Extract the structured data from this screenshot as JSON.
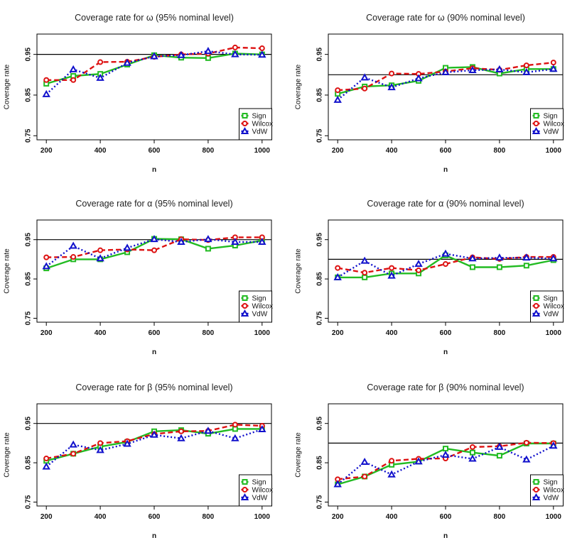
{
  "figure": {
    "width": 819,
    "height": 775
  },
  "colors": {
    "Sign": "#22bb22",
    "Wilcox": "#dd1111",
    "VdW": "#1111cc",
    "reference": "#000000",
    "frame": "#000000"
  },
  "series_styles": {
    "Sign": {
      "dash": "",
      "marker": "square"
    },
    "Wilcox": {
      "dash": "7,4",
      "marker": "circle"
    },
    "VdW": {
      "dash": "2,3",
      "marker": "triangle"
    }
  },
  "chart_data": [
    {
      "type": "line",
      "title": "Coverage rate for ω (95% nominal level)",
      "xlabel": "n",
      "ylabel": "Coverage rate",
      "x": [
        200,
        300,
        400,
        500,
        600,
        700,
        800,
        900,
        1000
      ],
      "xticks": [
        200,
        400,
        600,
        800,
        1000
      ],
      "yticks": [
        0.75,
        0.85,
        0.95
      ],
      "ylim": [
        0.74,
        1.0
      ],
      "reference_line": 0.95,
      "legend": [
        "Sign",
        "Wilcox",
        "VdW"
      ],
      "legend_position": "bottom-right",
      "series": [
        {
          "name": "Sign",
          "values": [
            0.878,
            0.897,
            0.902,
            0.925,
            0.948,
            0.942,
            0.941,
            0.952,
            0.95
          ]
        },
        {
          "name": "Wilcox",
          "values": [
            0.887,
            0.887,
            0.931,
            0.932,
            0.944,
            0.95,
            0.952,
            0.967,
            0.965
          ]
        },
        {
          "name": "VdW",
          "values": [
            0.852,
            0.913,
            0.892,
            0.929,
            0.945,
            0.948,
            0.958,
            0.95,
            0.949
          ]
        }
      ]
    },
    {
      "type": "line",
      "title": "Coverage rate for ω (90% nominal level)",
      "xlabel": "n",
      "ylabel": "Coverage rate",
      "x": [
        200,
        300,
        400,
        500,
        600,
        700,
        800,
        900,
        1000
      ],
      "xticks": [
        200,
        400,
        600,
        800,
        1000
      ],
      "yticks": [
        0.75,
        0.85,
        0.95
      ],
      "ylim": [
        0.74,
        1.0
      ],
      "reference_line": 0.9,
      "legend": [
        "Sign",
        "Wilcox",
        "VdW"
      ],
      "legend_position": "bottom-right",
      "series": [
        {
          "name": "Sign",
          "values": [
            0.853,
            0.871,
            0.874,
            0.885,
            0.917,
            0.919,
            0.903,
            0.914,
            0.914
          ]
        },
        {
          "name": "Wilcox",
          "values": [
            0.862,
            0.866,
            0.903,
            0.902,
            0.908,
            0.916,
            0.912,
            0.923,
            0.93
          ]
        },
        {
          "name": "VdW",
          "values": [
            0.838,
            0.893,
            0.869,
            0.891,
            0.906,
            0.911,
            0.913,
            0.906,
            0.914
          ]
        }
      ]
    },
    {
      "type": "line",
      "title": "Coverage rate for α (95% nominal level)",
      "xlabel": "n",
      "ylabel": "Coverage rate",
      "x": [
        200,
        300,
        400,
        500,
        600,
        700,
        800,
        900,
        1000
      ],
      "xticks": [
        200,
        400,
        600,
        800,
        1000
      ],
      "yticks": [
        0.75,
        0.85,
        0.95
      ],
      "ylim": [
        0.74,
        1.0
      ],
      "reference_line": 0.95,
      "legend": [
        "Sign",
        "Wilcox",
        "VdW"
      ],
      "legend_position": "bottom-right",
      "series": [
        {
          "name": "Sign",
          "values": [
            0.877,
            0.9,
            0.9,
            0.918,
            0.952,
            0.951,
            0.927,
            0.935,
            0.948
          ]
        },
        {
          "name": "Wilcox",
          "values": [
            0.905,
            0.906,
            0.923,
            0.925,
            0.923,
            0.951,
            0.949,
            0.956,
            0.956
          ]
        },
        {
          "name": "VdW",
          "values": [
            0.882,
            0.934,
            0.902,
            0.929,
            0.951,
            0.944,
            0.951,
            0.944,
            0.944
          ]
        }
      ]
    },
    {
      "type": "line",
      "title": "Coverage rate for α (90% nominal level)",
      "xlabel": "n",
      "ylabel": "Coverage rate",
      "x": [
        200,
        300,
        400,
        500,
        600,
        700,
        800,
        900,
        1000
      ],
      "xticks": [
        200,
        400,
        600,
        800,
        1000
      ],
      "yticks": [
        0.75,
        0.85,
        0.95
      ],
      "ylim": [
        0.74,
        1.0
      ],
      "reference_line": 0.9,
      "legend": [
        "Sign",
        "Wilcox",
        "VdW"
      ],
      "legend_position": "bottom-right",
      "series": [
        {
          "name": "Sign",
          "values": [
            0.854,
            0.854,
            0.864,
            0.864,
            0.91,
            0.88,
            0.88,
            0.884,
            0.898
          ]
        },
        {
          "name": "Wilcox",
          "values": [
            0.878,
            0.866,
            0.878,
            0.872,
            0.888,
            0.905,
            0.901,
            0.906,
            0.906
          ]
        },
        {
          "name": "VdW",
          "values": [
            0.854,
            0.896,
            0.858,
            0.888,
            0.914,
            0.902,
            0.904,
            0.904,
            0.902
          ]
        }
      ]
    },
    {
      "type": "line",
      "title": "Coverage rate for β (95% nominal level)",
      "xlabel": "n",
      "ylabel": "Coverage rate",
      "x": [
        200,
        300,
        400,
        500,
        600,
        700,
        800,
        900,
        1000
      ],
      "xticks": [
        200,
        400,
        600,
        800,
        1000
      ],
      "yticks": [
        0.75,
        0.85,
        0.95
      ],
      "ylim": [
        0.74,
        1.0
      ],
      "reference_line": 0.95,
      "legend": [
        "Sign",
        "Wilcox",
        "VdW"
      ],
      "legend_position": "bottom-right",
      "series": [
        {
          "name": "Sign",
          "values": [
            0.855,
            0.873,
            0.891,
            0.903,
            0.93,
            0.933,
            0.924,
            0.936,
            0.936
          ]
        },
        {
          "name": "Wilcox",
          "values": [
            0.861,
            0.873,
            0.9,
            0.905,
            0.923,
            0.93,
            0.931,
            0.947,
            0.944
          ]
        },
        {
          "name": "VdW",
          "values": [
            0.84,
            0.896,
            0.882,
            0.898,
            0.921,
            0.912,
            0.931,
            0.912,
            0.935
          ]
        }
      ]
    },
    {
      "type": "line",
      "title": "Coverage rate for β (90% nominal level)",
      "xlabel": "n",
      "ylabel": "Coverage rate",
      "x": [
        200,
        300,
        400,
        500,
        600,
        700,
        800,
        900,
        1000
      ],
      "xticks": [
        200,
        400,
        600,
        800,
        1000
      ],
      "yticks": [
        0.75,
        0.85,
        0.95
      ],
      "ylim": [
        0.74,
        1.0
      ],
      "reference_line": 0.9,
      "legend": [
        "Sign",
        "Wilcox",
        "VdW"
      ],
      "legend_position": "bottom-right",
      "series": [
        {
          "name": "Sign",
          "values": [
            0.795,
            0.815,
            0.845,
            0.853,
            0.886,
            0.876,
            0.868,
            0.899,
            0.899
          ]
        },
        {
          "name": "Wilcox",
          "values": [
            0.808,
            0.815,
            0.855,
            0.86,
            0.861,
            0.89,
            0.892,
            0.901,
            0.9
          ]
        },
        {
          "name": "VdW",
          "values": [
            0.795,
            0.852,
            0.82,
            0.853,
            0.87,
            0.86,
            0.89,
            0.858,
            0.893
          ]
        }
      ]
    }
  ]
}
